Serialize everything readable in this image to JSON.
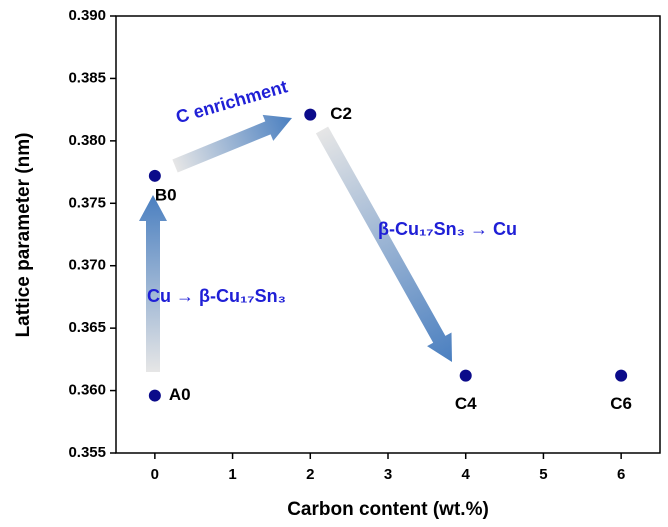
{
  "chart_data": {
    "type": "scatter",
    "x_label": "Carbon content (wt.%)",
    "y_label": "Lattice parameter (nm)",
    "x": [
      0,
      0,
      2,
      4,
      6
    ],
    "values": [
      0.3596,
      0.3772,
      0.3821,
      0.3612,
      0.3612
    ],
    "point_labels": [
      "A0",
      "B0",
      "C2",
      "C4",
      "C6"
    ],
    "color": "#0b0b8a",
    "xlim": [
      -0.5,
      6.5
    ],
    "xticks": [
      0,
      1,
      2,
      3,
      4,
      5,
      6
    ],
    "ylim": [
      0.355,
      0.39
    ],
    "yticks": [
      0.355,
      {
        "value": 0.36,
        "label": "0.360"
      },
      0.365,
      {
        "value": 0.37,
        "label": "0.370"
      },
      0.375,
      {
        "value": 0.38,
        "label": "0.380"
      },
      0.385,
      {
        "value": 0.39,
        "label": "0.390"
      }
    ],
    "annotations": [
      "C enrichment",
      "β-Cu₁₇Sn₃ → Cu",
      "Cu → β-Cu₁₇Sn₃"
    ]
  }
}
